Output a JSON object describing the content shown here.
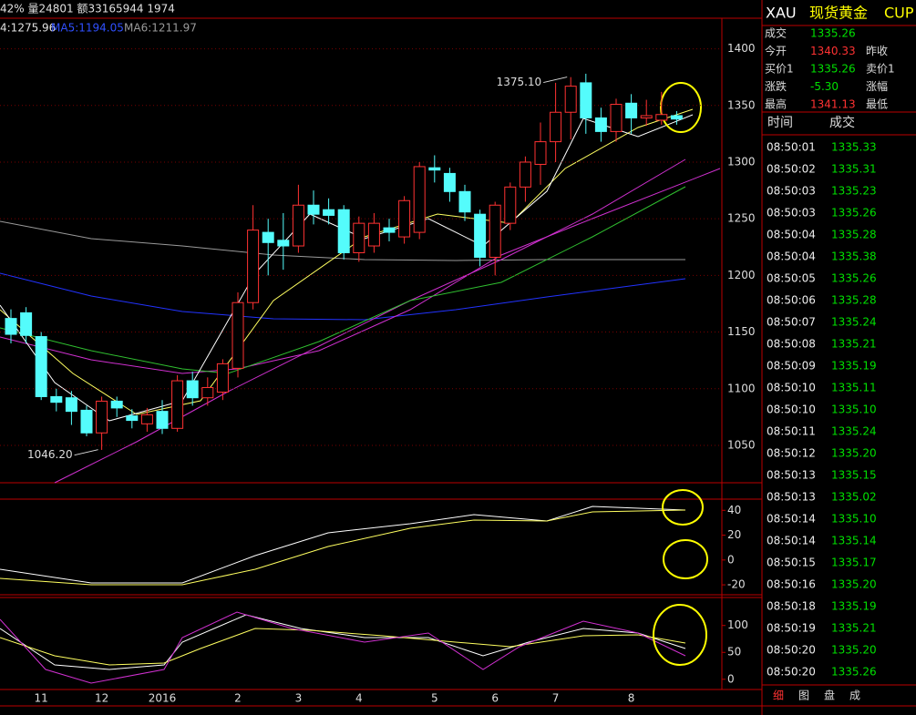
{
  "top_bar": {
    "stats": "42% 量24801 额33165944 1974",
    "ma": [
      "4:1275.96",
      "MA5:1194.05",
      "MA6:1211.97"
    ]
  },
  "chart_data": {
    "type": "candlestick",
    "ylim": [
      1017,
      1427
    ],
    "yticks": [
      1050,
      1100,
      1150,
      1200,
      1250,
      1300,
      1350,
      1400
    ],
    "candles": [
      {
        "open": 1162,
        "high": 1170,
        "low": 1140,
        "close": 1148
      },
      {
        "open": 1167,
        "high": 1172,
        "low": 1140,
        "close": 1147
      },
      {
        "open": 1146,
        "high": 1150,
        "low": 1090,
        "close": 1093
      },
      {
        "open": 1093,
        "high": 1100,
        "low": 1080,
        "close": 1088
      },
      {
        "open": 1092,
        "high": 1098,
        "low": 1068,
        "close": 1080
      },
      {
        "open": 1081,
        "high": 1085,
        "low": 1058,
        "close": 1061
      },
      {
        "open": 1061,
        "high": 1093,
        "low": 1046,
        "close": 1089
      },
      {
        "open": 1089,
        "high": 1093,
        "low": 1075,
        "close": 1083
      },
      {
        "open": 1076,
        "high": 1082,
        "low": 1065,
        "close": 1072
      },
      {
        "open": 1069,
        "high": 1083,
        "low": 1062,
        "close": 1077
      },
      {
        "open": 1080,
        "high": 1090,
        "low": 1060,
        "close": 1065
      },
      {
        "open": 1065,
        "high": 1112,
        "low": 1062,
        "close": 1107
      },
      {
        "open": 1107,
        "high": 1115,
        "low": 1085,
        "close": 1092
      },
      {
        "open": 1092,
        "high": 1110,
        "low": 1085,
        "close": 1101
      },
      {
        "open": 1097,
        "high": 1126,
        "low": 1090,
        "close": 1122
      },
      {
        "open": 1118,
        "high": 1185,
        "low": 1110,
        "close": 1176
      },
      {
        "open": 1176,
        "high": 1262,
        "low": 1170,
        "close": 1240
      },
      {
        "open": 1238,
        "high": 1250,
        "low": 1200,
        "close": 1229
      },
      {
        "open": 1231,
        "high": 1255,
        "low": 1205,
        "close": 1226
      },
      {
        "open": 1226,
        "high": 1280,
        "low": 1220,
        "close": 1262
      },
      {
        "open": 1262,
        "high": 1275,
        "low": 1245,
        "close": 1254
      },
      {
        "open": 1258,
        "high": 1268,
        "low": 1245,
        "close": 1253
      },
      {
        "open": 1258,
        "high": 1262,
        "low": 1214,
        "close": 1220
      },
      {
        "open": 1220,
        "high": 1252,
        "low": 1212,
        "close": 1246
      },
      {
        "open": 1226,
        "high": 1255,
        "low": 1220,
        "close": 1246
      },
      {
        "open": 1242,
        "high": 1250,
        "low": 1230,
        "close": 1238
      },
      {
        "open": 1234,
        "high": 1270,
        "low": 1228,
        "close": 1266
      },
      {
        "open": 1238,
        "high": 1300,
        "low": 1232,
        "close": 1296
      },
      {
        "open": 1295,
        "high": 1306,
        "low": 1282,
        "close": 1293
      },
      {
        "open": 1290,
        "high": 1295,
        "low": 1265,
        "close": 1274
      },
      {
        "open": 1274,
        "high": 1280,
        "low": 1248,
        "close": 1256
      },
      {
        "open": 1254,
        "high": 1258,
        "low": 1208,
        "close": 1216
      },
      {
        "open": 1216,
        "high": 1265,
        "low": 1200,
        "close": 1262
      },
      {
        "open": 1246,
        "high": 1282,
        "low": 1240,
        "close": 1278
      },
      {
        "open": 1278,
        "high": 1305,
        "low": 1265,
        "close": 1300
      },
      {
        "open": 1298,
        "high": 1335,
        "low": 1280,
        "close": 1318
      },
      {
        "open": 1318,
        "high": 1370,
        "low": 1300,
        "close": 1344
      },
      {
        "open": 1344,
        "high": 1375,
        "low": 1320,
        "close": 1367
      },
      {
        "open": 1370,
        "high": 1378,
        "low": 1325,
        "close": 1339
      },
      {
        "open": 1339,
        "high": 1348,
        "low": 1318,
        "close": 1327
      },
      {
        "open": 1327,
        "high": 1356,
        "low": 1318,
        "close": 1351
      },
      {
        "open": 1352,
        "high": 1360,
        "low": 1325,
        "close": 1339
      },
      {
        "open": 1339,
        "high": 1355,
        "low": 1332,
        "close": 1341
      },
      {
        "open": 1337,
        "high": 1362,
        "low": 1333,
        "close": 1342
      },
      {
        "open": 1341,
        "high": 1345,
        "low": 1333,
        "close": 1338
      }
    ],
    "annotations": [
      {
        "text": "1375.10",
        "value": 1375.1,
        "index": 37
      },
      {
        "text": "1046.20",
        "value": 1046.2,
        "index": 6
      }
    ],
    "months": [
      "11",
      "12",
      "2016",
      "2",
      "3",
      "4",
      "5",
      "6",
      "7",
      "8"
    ],
    "month_index": [
      2,
      6,
      10,
      15,
      19,
      23,
      28,
      32,
      36,
      41
    ],
    "macd": {
      "ylim": [
        -28,
        49
      ],
      "yticks": [
        40,
        20,
        0,
        -20
      ]
    },
    "kdj": {
      "ylim": [
        -19,
        152
      ],
      "yticks": [
        100,
        50,
        0
      ]
    }
  },
  "quote": {
    "symbol": "XAU",
    "name": "现货黄金",
    "currency": "CUP",
    "rows": [
      [
        "成交",
        "1335.26"
      ],
      [
        "今开",
        "1340.33",
        "昨收"
      ],
      [
        "买价1",
        "1335.26",
        "卖价1"
      ],
      [
        "涨跌",
        "-5.30",
        "涨幅"
      ],
      [
        "最高",
        "1341.13",
        "最低"
      ]
    ]
  },
  "ticks": {
    "headers": [
      "时间",
      "成交"
    ],
    "rows": [
      [
        "08:50:01",
        "1335.33"
      ],
      [
        "08:50:02",
        "1335.31"
      ],
      [
        "08:50:03",
        "1335.23"
      ],
      [
        "08:50:03",
        "1335.26"
      ],
      [
        "08:50:04",
        "1335.28"
      ],
      [
        "08:50:04",
        "1335.38"
      ],
      [
        "08:50:05",
        "1335.26"
      ],
      [
        "08:50:06",
        "1335.28"
      ],
      [
        "08:50:07",
        "1335.24"
      ],
      [
        "08:50:08",
        "1335.21"
      ],
      [
        "08:50:09",
        "1335.19"
      ],
      [
        "08:50:10",
        "1335.11"
      ],
      [
        "08:50:10",
        "1335.10"
      ],
      [
        "08:50:11",
        "1335.24"
      ],
      [
        "08:50:12",
        "1335.20"
      ],
      [
        "08:50:13",
        "1335.15"
      ],
      [
        "08:50:13",
        "1335.02"
      ],
      [
        "08:50:14",
        "1335.10"
      ],
      [
        "08:50:14",
        "1335.14"
      ],
      [
        "08:50:15",
        "1335.17"
      ],
      [
        "08:50:16",
        "1335.20"
      ],
      [
        "08:50:18",
        "1335.19"
      ],
      [
        "08:50:19",
        "1335.21"
      ],
      [
        "08:50:20",
        "1335.20"
      ],
      [
        "08:50:20",
        "1335.26"
      ]
    ]
  },
  "tabs": [
    "细",
    "图",
    "盘",
    "成"
  ]
}
